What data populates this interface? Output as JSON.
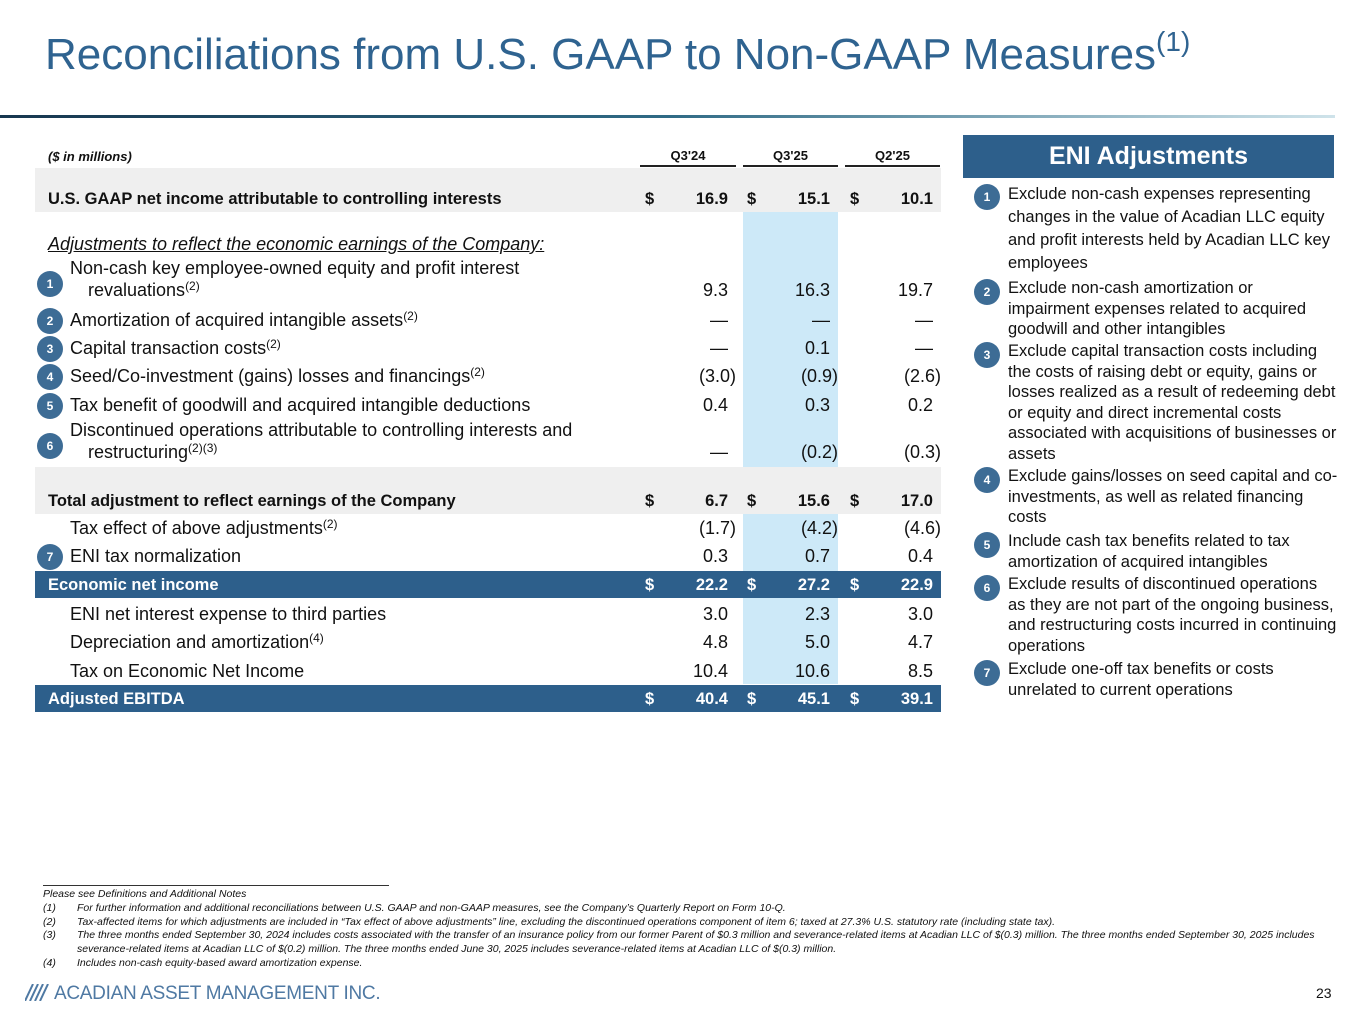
{
  "title": "Reconciliations from U.S. GAAP to Non-GAAP Measures",
  "title_sup": "(1)",
  "table": {
    "unit_label": "($ in millions)",
    "columns": [
      "Q3'24",
      "Q3'25",
      "Q2'25"
    ],
    "rows": [
      {
        "label": [
          "U.S. GAAP net income attributable to controlling interests"
        ],
        "currency": "$",
        "values": [
          "16.9",
          "15.1",
          "10.1"
        ]
      },
      {
        "label": [
          "Adjustments to reflect the economic earnings of the Company:"
        ]
      },
      {
        "label": [
          "Non-cash key employee-owned equity and profit interest",
          "revaluations"
        ],
        "sup": "(2)",
        "badge": "1",
        "values": [
          "9.3",
          "16.3",
          "19.7"
        ]
      },
      {
        "label": [
          "Amortization of acquired intangible assets"
        ],
        "sup": "(2)",
        "badge": "2",
        "values": [
          "—",
          "—",
          "—"
        ]
      },
      {
        "label": [
          "Capital transaction costs"
        ],
        "sup": "(2)",
        "badge": "3",
        "values": [
          "—",
          "0.1",
          "—"
        ]
      },
      {
        "label": [
          "Seed/Co-investment (gains) losses and financings"
        ],
        "sup": "(2)",
        "badge": "4",
        "values": [
          "(3.0)",
          "(0.9)",
          "(2.6)"
        ]
      },
      {
        "label": [
          "Tax benefit of goodwill and acquired intangible deductions"
        ],
        "badge": "5",
        "values": [
          "0.4",
          "0.3",
          "0.2"
        ]
      },
      {
        "label": [
          "Discontinued operations attributable to controlling interests and",
          "restructuring"
        ],
        "sup": "(2)(3)",
        "badge": "6",
        "values": [
          "—",
          "(0.2)",
          "(0.3)"
        ]
      },
      {
        "label": [
          "Total adjustment to reflect earnings of the Company"
        ],
        "currency": "$",
        "values": [
          "6.7",
          "15.6",
          "17.0"
        ]
      },
      {
        "label": [
          "Tax effect of above adjustments"
        ],
        "sup": "(2)",
        "values": [
          "(1.7)",
          "(4.2)",
          "(4.6)"
        ]
      },
      {
        "label": [
          "ENI tax normalization"
        ],
        "badge": "7",
        "values": [
          "0.3",
          "0.7",
          "0.4"
        ]
      },
      {
        "label": [
          "Economic net income"
        ],
        "currency": "$",
        "values": [
          "22.2",
          "27.2",
          "22.9"
        ]
      },
      {
        "label": [
          "ENI net interest expense to third parties"
        ],
        "values": [
          "3.0",
          "2.3",
          "3.0"
        ]
      },
      {
        "label": [
          "Depreciation and amortization"
        ],
        "sup": "(4)",
        "values": [
          "4.8",
          "5.0",
          "4.7"
        ]
      },
      {
        "label": [
          "Tax on Economic Net Income"
        ],
        "values": [
          "10.4",
          "10.6",
          "8.5"
        ]
      },
      {
        "label": [
          "Adjusted EBITDA"
        ],
        "currency": "$",
        "values": [
          "40.4",
          "45.1",
          "39.1"
        ]
      }
    ]
  },
  "side": {
    "title": "ENI Adjustments",
    "items": [
      {
        "num": "1",
        "text": "Exclude non-cash expenses representing changes in the value of Acadian LLC equity and profit interests held by Acadian LLC key employees"
      },
      {
        "num": "2",
        "text": "Exclude non-cash amortization or impairment expenses related to acquired goodwill and other intangibles"
      },
      {
        "num": "3",
        "text": "Exclude capital transaction costs including the costs of raising debt or equity, gains or losses realized as a result of redeeming debt or equity and direct incremental costs associated with acquisitions of businesses or assets"
      },
      {
        "num": "4",
        "text": "Exclude gains/losses on seed capital and co-investments, as well as related financing costs"
      },
      {
        "num": "5",
        "text": "Include cash tax benefits related to tax amortization of acquired intangibles"
      },
      {
        "num": "6",
        "text": "Exclude results of discontinued operations as they are not part of the ongoing business, and restructuring costs incurred in continuing operations"
      },
      {
        "num": "7",
        "text": "Exclude one-off tax benefits or costs unrelated to current operations"
      }
    ]
  },
  "footnotes": {
    "heading": "Please see Definitions and Additional Notes",
    "items": [
      {
        "num": "(1)",
        "text": "For further information and additional reconciliations between U.S. GAAP and non-GAAP measures, see the Company’s Quarterly Report on Form 10-Q."
      },
      {
        "num": "(2)",
        "text": "Tax-affected items for which adjustments are included in “Tax effect of above adjustments” line, excluding the discontinued operations component of item 6; taxed at 27.3% U.S. statutory rate (including state tax)."
      },
      {
        "num": "(3)",
        "text": "The three months ended September 30, 2024 includes costs associated with the transfer of an insurance policy from our former Parent of $0.3 million and severance-related items at Acadian LLC of $(0.3) million. The three months ended September 30, 2025 includes severance-related items at Acadian LLC of $(0.2) million. The three months ended June 30, 2025 includes severance-related items at Acadian LLC of $(0.3) million."
      },
      {
        "num": "(4)",
        "text": "Includes non-cash equity-based award amortization expense."
      }
    ]
  },
  "footer": {
    "company": "ACADIAN ASSET MANAGEMENT INC.",
    "page": "23"
  }
}
